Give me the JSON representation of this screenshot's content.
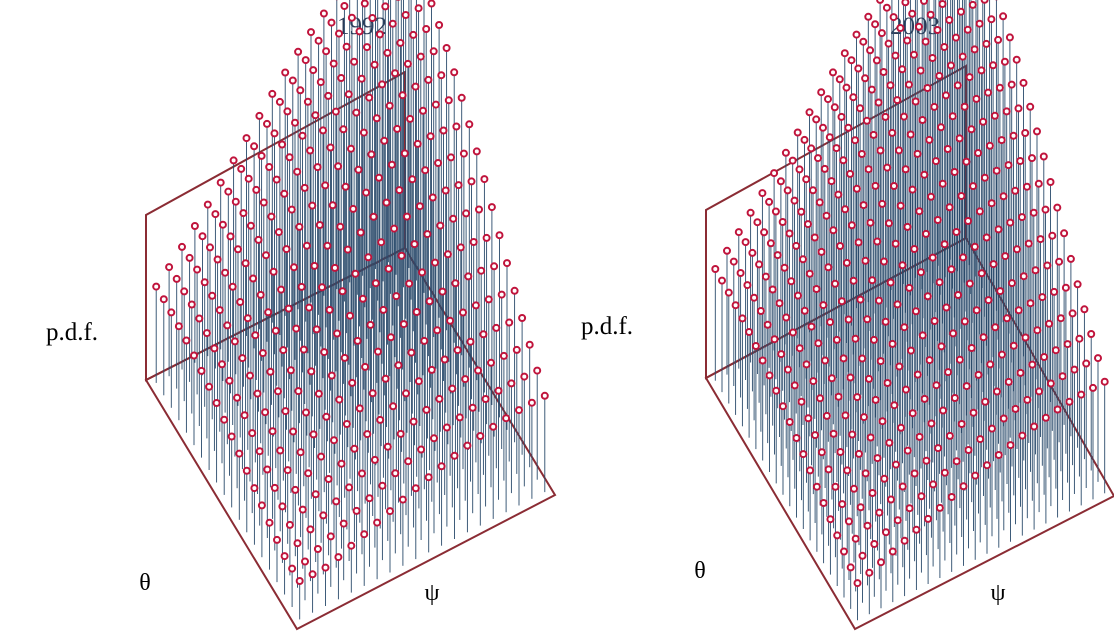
{
  "chart_data": [
    {
      "type": "3d-stem",
      "title": "1992",
      "zlabel": "p.d.f.",
      "xlabel": "θ",
      "ylabel": "ψ",
      "grid": {
        "rows": 20,
        "cols": 20
      },
      "shape": {
        "peak": 1.0,
        "corner_min": 0.12,
        "falloff": 1.15,
        "drop_near": 0.55,
        "drop_far": 0.35
      },
      "colors": {
        "frame": "#8b2c34",
        "marker": "#c0143c",
        "stem": "#2a4a6b",
        "title": "#2b3a55"
      }
    },
    {
      "type": "3d-stem",
      "title": "2003",
      "zlabel": "p.d.f.",
      "xlabel": "θ",
      "ylabel": "ψ",
      "grid": {
        "rows": 22,
        "cols": 22
      },
      "shape": {
        "peak": 1.0,
        "corner_min": 0.1,
        "falloff": 1.05,
        "drop_near": 0.65,
        "drop_far": 0.4
      },
      "colors": {
        "frame": "#8b2c34",
        "marker": "#c0143c",
        "stem": "#2a4a6b",
        "title": "#2b3a55"
      }
    }
  ]
}
